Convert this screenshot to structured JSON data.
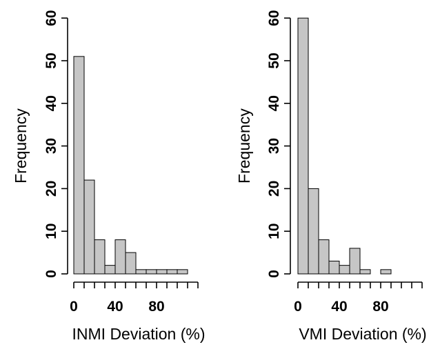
{
  "chart_data": [
    {
      "type": "bar",
      "subtype": "histogram",
      "xlabel": "INMI Deviation (%)",
      "ylabel": "Frequency",
      "bin_width": 10,
      "bin_starts": [
        0,
        10,
        20,
        30,
        40,
        50,
        60,
        70,
        80,
        90,
        100
      ],
      "values": [
        51,
        22,
        8,
        2,
        8,
        5,
        1,
        1,
        1,
        1,
        1
      ],
      "xlim": [
        0,
        120
      ],
      "ylim": [
        0,
        60
      ],
      "xticks": [
        0,
        10,
        20,
        30,
        40,
        50,
        60,
        70,
        80,
        90,
        100,
        110,
        120
      ],
      "xtick_labels": [
        {
          "value": 0,
          "label": "0"
        },
        {
          "value": 40,
          "label": "40"
        },
        {
          "value": 80,
          "label": "80"
        }
      ],
      "yticks": [
        0,
        10,
        20,
        30,
        40,
        50,
        60
      ],
      "ytick_labels": [
        "0",
        "10",
        "20",
        "30",
        "40",
        "50",
        "60"
      ],
      "grid": false,
      "bar_color": "#c6c6c6"
    },
    {
      "type": "bar",
      "subtype": "histogram",
      "xlabel": "VMI Deviation (%)",
      "ylabel": "Frequency",
      "bin_width": 10,
      "bin_starts": [
        0,
        10,
        20,
        30,
        40,
        50,
        60,
        70,
        80
      ],
      "values": [
        60,
        20,
        8,
        3,
        2,
        6,
        1,
        0,
        1
      ],
      "xlim": [
        0,
        120
      ],
      "ylim": [
        0,
        60
      ],
      "xticks": [
        0,
        10,
        20,
        30,
        40,
        50,
        60,
        70,
        80,
        90,
        100,
        110,
        120
      ],
      "xtick_labels": [
        {
          "value": 0,
          "label": "0"
        },
        {
          "value": 40,
          "label": "40"
        },
        {
          "value": 80,
          "label": "80"
        }
      ],
      "yticks": [
        0,
        10,
        20,
        30,
        40,
        50,
        60
      ],
      "ytick_labels": [
        "0",
        "10",
        "20",
        "30",
        "40",
        "50",
        "60"
      ],
      "grid": false,
      "bar_color": "#c6c6c6"
    }
  ]
}
